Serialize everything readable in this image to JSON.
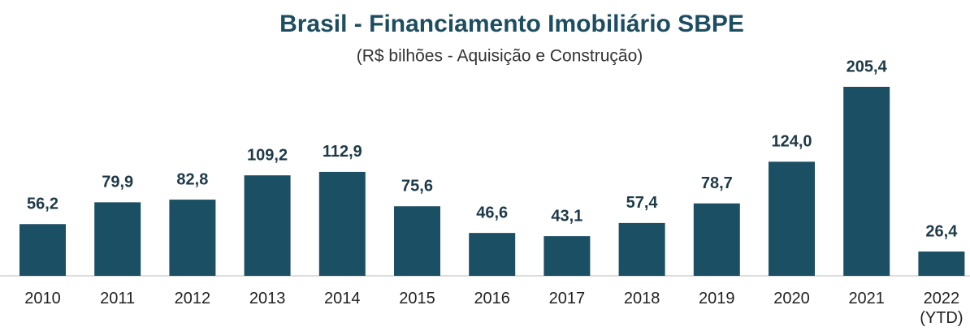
{
  "chart_data": {
    "type": "bar",
    "title": "Brasil - Financiamento Imobiliário SBPE",
    "subtitle": "(R$ bilhões - Aquisição e Construção)",
    "categories": [
      "2010",
      "2011",
      "2012",
      "2013",
      "2014",
      "2015",
      "2016",
      "2017",
      "2018",
      "2019",
      "2020",
      "2021",
      "2022 (YTD)"
    ],
    "values": [
      56.2,
      79.9,
      82.8,
      109.2,
      112.9,
      75.6,
      46.6,
      43.1,
      57.4,
      78.7,
      124.0,
      205.4,
      26.4
    ],
    "value_labels": [
      "56,2",
      "79,9",
      "82,8",
      "109,2",
      "112,9",
      "75,6",
      "46,6",
      "43,1",
      "57,4",
      "78,7",
      "124,0",
      "205,4",
      "26,4"
    ],
    "color": "#1b4f63"
  }
}
